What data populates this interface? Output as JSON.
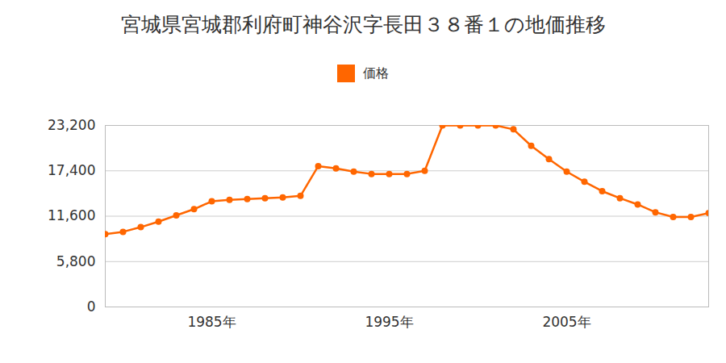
{
  "chart_data": {
    "type": "line",
    "title": "宮城県宮城郡利府町神谷沢字長田３８番１の地価推移",
    "x": [
      1979,
      1980,
      1981,
      1982,
      1983,
      1984,
      1985,
      1986,
      1987,
      1988,
      1989,
      1990,
      1991,
      1992,
      1993,
      1994,
      1995,
      1996,
      1997,
      1998,
      1999,
      2000,
      2001,
      2002,
      2003,
      2004,
      2005,
      2006,
      2007,
      2008,
      2009,
      2010,
      2011,
      2012,
      2013
    ],
    "series": [
      {
        "name": "価格",
        "color": "#ff6600",
        "marker": "circle",
        "values": [
          9300,
          9600,
          10200,
          10900,
          11700,
          12500,
          13500,
          13700,
          13800,
          13900,
          14000,
          14200,
          18000,
          17700,
          17300,
          17000,
          17000,
          17000,
          17400,
          23200,
          23200,
          23200,
          23200,
          22700,
          20600,
          18900,
          17300,
          16000,
          14800,
          13900,
          13100,
          12100,
          11500,
          11500,
          12000
        ]
      }
    ],
    "xlim": [
      1979,
      2013
    ],
    "xticks": [
      {
        "value": 1985,
        "label": "1985年"
      },
      {
        "value": 1995,
        "label": "1995年"
      },
      {
        "value": 2005,
        "label": "2005年"
      }
    ],
    "ylim": [
      0,
      23200
    ],
    "yticks": [
      0,
      {
        "value": 5800,
        "label": "5,800"
      },
      {
        "value": 11600,
        "label": "11,600"
      },
      {
        "value": 17400,
        "label": "17,400"
      },
      {
        "value": 23200,
        "label": "23,200"
      }
    ],
    "grid": true,
    "legend": "top"
  }
}
